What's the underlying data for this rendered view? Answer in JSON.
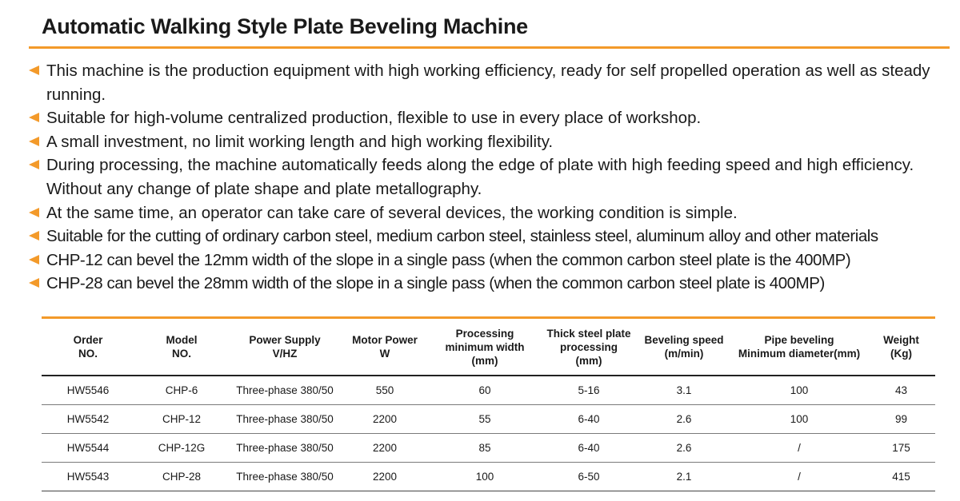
{
  "title": "Automatic Walking Style Plate Beveling Machine",
  "accent_color": "#f39a2a",
  "bullet_icon": "left-triangle-arrow-icon",
  "bullets": [
    "This machine is the production equipment with high working efficiency, ready for self propelled operation as well as steady running.",
    "Suitable for high-volume centralized production, flexible to use in every place of workshop.",
    "A small investment, no limit working length and high working flexibility.",
    "During processing, the machine automatically feeds along the edge of plate with high feeding speed and high efficiency. Without any change of plate shape and plate metallography.",
    "At the same time, an operator can take care of several devices, the working condition is simple.",
    "Suitable for the cutting of ordinary carbon steel, medium carbon steel, stainless steel, aluminum alloy and other materials",
    "CHP-12 can bevel the 12mm width of the slope in a single pass (when the common carbon steel plate is the 400MP)",
    "CHP-28 can bevel the 28mm width of the slope in a single pass (when the common carbon steel plate is 400MP)"
  ],
  "table": {
    "headers": [
      [
        "Order",
        "NO."
      ],
      [
        "Model",
        "NO."
      ],
      [
        "Power Supply",
        "V/HZ"
      ],
      [
        "Motor Power",
        "W"
      ],
      [
        "Processing",
        "minimum width",
        "(mm)"
      ],
      [
        "Thick steel plate",
        "processing",
        "(mm)"
      ],
      [
        "Beveling speed",
        "(m/min)"
      ],
      [
        "Pipe beveling",
        "Minimum diameter(mm)"
      ],
      [
        "Weight",
        "(Kg)"
      ]
    ],
    "rows": [
      [
        "HW5546",
        "CHP-6",
        "Three-phase 380/50",
        "550",
        "60",
        "5-16",
        "3.1",
        "100",
        "43"
      ],
      [
        "HW5542",
        "CHP-12",
        "Three-phase 380/50",
        "2200",
        "55",
        "6-40",
        "2.6",
        "100",
        "99"
      ],
      [
        "HW5544",
        "CHP-12G",
        "Three-phase 380/50",
        "2200",
        "85",
        "6-40",
        "2.6",
        "/",
        "175"
      ],
      [
        "HW5543",
        "CHP-28",
        "Three-phase 380/50",
        "2200",
        "100",
        "6-50",
        "2.1",
        "/",
        "415"
      ]
    ]
  }
}
